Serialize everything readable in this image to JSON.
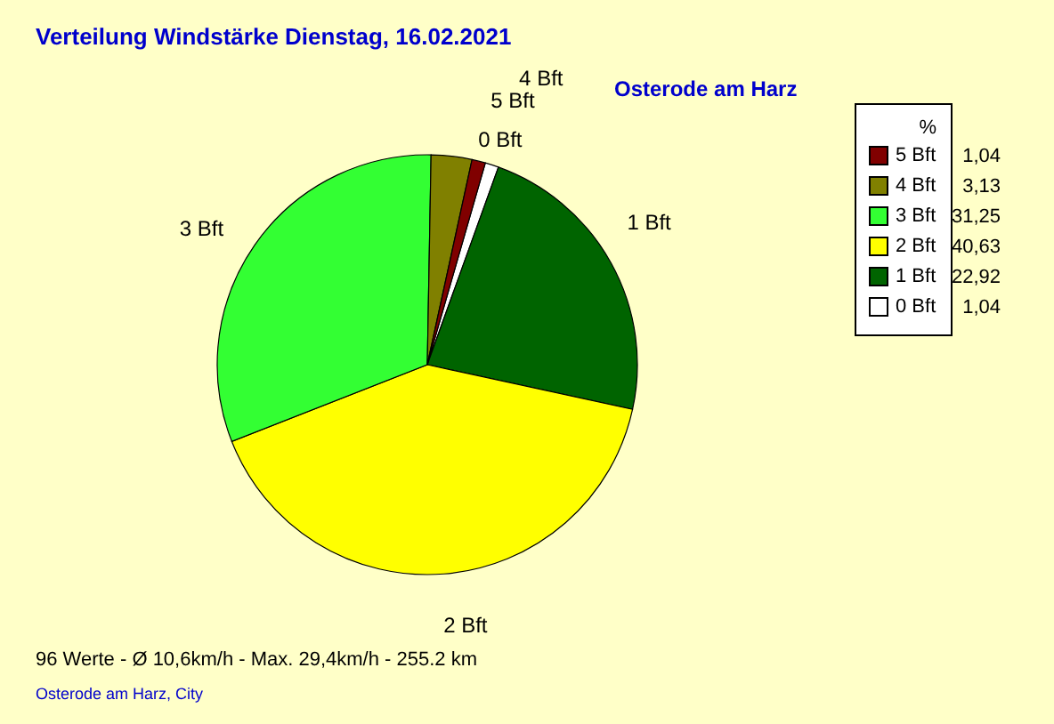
{
  "chart_data": {
    "type": "pie",
    "title": "Verteilung Windstärke  Dienstag, 16.02.2021",
    "subtitle": "Osterode am Harz",
    "legend_title": "%",
    "legend": "top right",
    "categories": [
      "0 Bft",
      "1 Bft",
      "2 Bft",
      "3 Bft",
      "4 Bft",
      "5 Bft"
    ],
    "values": [
      1.04,
      22.92,
      40.63,
      31.25,
      3.13,
      1.04
    ],
    "value_labels": [
      "1,04",
      "22,92",
      "40,63",
      "31,25",
      "3,13",
      "1,04"
    ],
    "colors": [
      "#ffffff",
      "#006400",
      "#ffff00",
      "#33ff33",
      "#808000",
      "#800000"
    ],
    "annotations": [
      "96 Werte   -   Ø 10,6km/h   -   Max. 29,4km/h   -   255.2 km",
      "Osterode am Harz, City"
    ]
  }
}
